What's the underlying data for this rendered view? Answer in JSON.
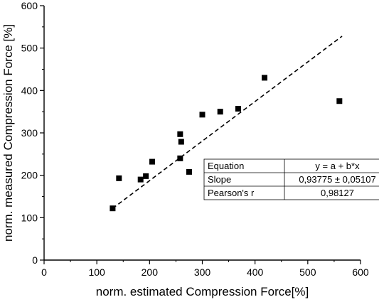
{
  "chart_data": {
    "type": "scatter",
    "title": "",
    "xlabel": "norm. estimated Compression Force[%]",
    "ylabel": "norm. measured Compression Force [%]",
    "xlim": [
      0,
      600
    ],
    "ylim": [
      0,
      600
    ],
    "x_ticks": [
      "0",
      "100",
      "200",
      "300",
      "400",
      "500",
      "600"
    ],
    "y_ticks": [
      "0",
      "100",
      "200",
      "300",
      "400",
      "500",
      "600"
    ],
    "grid": false,
    "points": [
      {
        "x": 130,
        "y": 122
      },
      {
        "x": 142,
        "y": 193
      },
      {
        "x": 183,
        "y": 190
      },
      {
        "x": 193,
        "y": 198
      },
      {
        "x": 205,
        "y": 232
      },
      {
        "x": 258,
        "y": 240
      },
      {
        "x": 258,
        "y": 297
      },
      {
        "x": 260,
        "y": 279
      },
      {
        "x": 275,
        "y": 208
      },
      {
        "x": 300,
        "y": 343
      },
      {
        "x": 334,
        "y": 350
      },
      {
        "x": 368,
        "y": 357
      },
      {
        "x": 418,
        "y": 430
      },
      {
        "x": 560,
        "y": 375
      }
    ],
    "fit_line": {
      "x": [
        130,
        565
      ],
      "y": [
        122,
        528
      ]
    },
    "stats_table": {
      "placement": "center-right",
      "rows": [
        [
          "Equation",
          "y = a + b*x"
        ],
        [
          "Slope",
          "0,93775 ± 0,05107"
        ],
        [
          "Pearson's r",
          "0,98127"
        ]
      ]
    }
  }
}
